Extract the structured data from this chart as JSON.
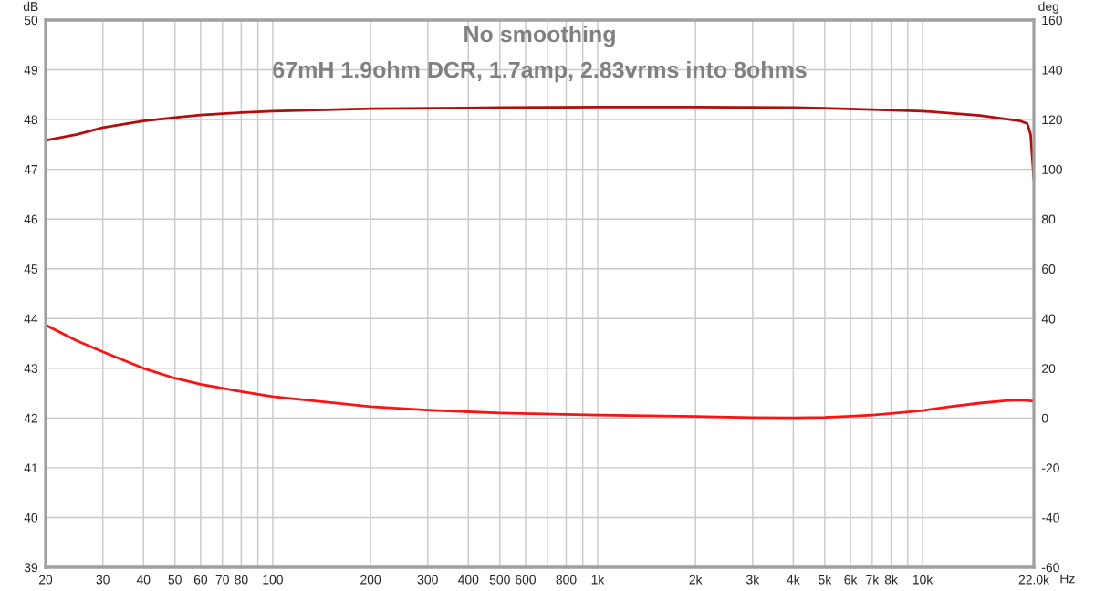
{
  "chart_data": {
    "type": "line",
    "title": "No smoothing",
    "subtitle": "67mH 1.9ohm DCR, 1.7amp, 2.83vrms into 8ohms",
    "xlabel": "Hz",
    "ylabel": "dB",
    "y2label": "deg",
    "log": "x",
    "grid": true,
    "legend": false,
    "xlim": [
      20,
      22000
    ],
    "xticks": [
      20,
      30,
      40,
      50,
      60,
      70,
      80,
      {
        "value": 90,
        "label": null
      },
      100,
      200,
      300,
      400,
      500,
      600,
      {
        "value": 700,
        "label": null
      },
      800,
      {
        "value": 900,
        "label": null
      },
      {
        "value": 1000,
        "label": "1k"
      },
      {
        "value": 2000,
        "label": "2k"
      },
      {
        "value": 3000,
        "label": "3k"
      },
      {
        "value": 4000,
        "label": "4k"
      },
      {
        "value": 5000,
        "label": "5k"
      },
      {
        "value": 6000,
        "label": "6k"
      },
      {
        "value": 7000,
        "label": "7k"
      },
      {
        "value": 8000,
        "label": "8k"
      },
      {
        "value": 9000,
        "label": null
      },
      {
        "value": 10000,
        "label": "10k"
      },
      {
        "value": 22000,
        "label": "22.0k"
      }
    ],
    "ylim": [
      39,
      50
    ],
    "yticks": [
      39,
      40,
      41,
      42,
      43,
      44,
      45,
      46,
      47,
      48,
      49,
      50
    ],
    "y2lim": [
      -60,
      160
    ],
    "y2ticks": [
      -60,
      -40,
      -20,
      0,
      20,
      40,
      60,
      80,
      100,
      120,
      140,
      160
    ],
    "series": [
      {
        "color": "#b50d0d",
        "x": [
          20,
          25,
          30,
          40,
          50,
          60,
          80,
          100,
          200,
          500,
          1000,
          2000,
          4000,
          5000,
          7000,
          10000,
          15000,
          20000,
          21000,
          21500,
          22000
        ],
        "values": [
          47.58,
          47.7,
          47.84,
          47.97,
          48.04,
          48.09,
          48.14,
          48.17,
          48.22,
          48.24,
          48.25,
          48.25,
          48.24,
          48.23,
          48.2,
          48.17,
          48.08,
          47.97,
          47.92,
          47.7,
          46.8
        ]
      },
      {
        "color": "#ff1111",
        "axis": "y2",
        "x": [
          20,
          25,
          30,
          40,
          50,
          60,
          70,
          80,
          100,
          200,
          300,
          500,
          1000,
          2000,
          3000,
          4000,
          5000,
          6000,
          7000,
          8000,
          10000,
          12000,
          15000,
          18000,
          20000,
          22000
        ],
        "values": [
          37.4,
          31,
          26.6,
          20,
          16,
          13.6,
          12,
          10.6,
          8.6,
          4.6,
          3.2,
          2.0,
          1.2,
          0.6,
          0.2,
          0.1,
          0.3,
          0.7,
          1.2,
          1.8,
          3,
          4.5,
          6,
          7,
          7.2,
          6.8
        ]
      }
    ]
  }
}
